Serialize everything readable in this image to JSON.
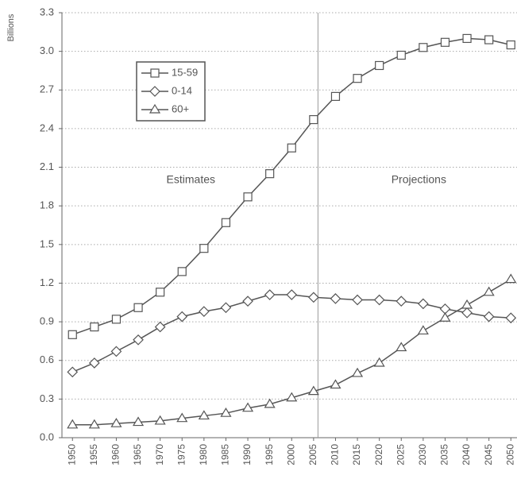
{
  "chart_data": {
    "type": "line",
    "y_label": "Billions",
    "x": [
      1950,
      1955,
      1960,
      1965,
      1970,
      1975,
      1980,
      1985,
      1990,
      1995,
      2000,
      2005,
      2010,
      2015,
      2020,
      2025,
      2030,
      2035,
      2040,
      2045,
      2050
    ],
    "series": [
      {
        "name": "15-59",
        "color": "#555555",
        "marker": "square",
        "values": [
          0.8,
          0.86,
          0.92,
          1.01,
          1.13,
          1.29,
          1.47,
          1.67,
          1.87,
          2.05,
          2.25,
          2.47,
          2.65,
          2.79,
          2.89,
          2.97,
          3.03,
          3.07,
          3.1,
          3.09,
          3.05
        ]
      },
      {
        "name": "0-14",
        "color": "#555555",
        "marker": "diamond",
        "values": [
          0.51,
          0.58,
          0.67,
          0.76,
          0.86,
          0.94,
          0.98,
          1.01,
          1.06,
          1.11,
          1.11,
          1.09,
          1.08,
          1.07,
          1.07,
          1.06,
          1.04,
          1.0,
          0.97,
          0.94,
          0.93
        ]
      },
      {
        "name": "60+",
        "color": "#555555",
        "marker": "triangle",
        "values": [
          0.1,
          0.1,
          0.11,
          0.12,
          0.13,
          0.15,
          0.17,
          0.19,
          0.23,
          0.26,
          0.31,
          0.36,
          0.41,
          0.5,
          0.58,
          0.7,
          0.83,
          0.93,
          1.03,
          1.13,
          1.23
        ]
      }
    ],
    "xlim": [
      1947.6,
      2051.4
    ],
    "xticks": [
      1950,
      1955,
      1960,
      1965,
      1970,
      1975,
      1980,
      1985,
      1990,
      1995,
      2000,
      2005,
      2010,
      2015,
      2020,
      2025,
      2030,
      2035,
      2040,
      2045,
      2050
    ],
    "ylim": [
      0,
      3.3
    ],
    "yticks": [
      {
        "value": 0,
        "label": "0.0"
      },
      0.3,
      0.6,
      0.9,
      1.2,
      1.5,
      1.8,
      2.1,
      2.4,
      2.7,
      {
        "value": 3,
        "label": "3.0"
      },
      3.3
    ],
    "grid": true,
    "legend": "upper-left",
    "divider_x": 2006,
    "annotations": [
      {
        "text": "Estimates",
        "x": 1977,
        "y": 2.0
      },
      {
        "text": "Projections",
        "x": 2029,
        "y": 2.0
      }
    ]
  }
}
